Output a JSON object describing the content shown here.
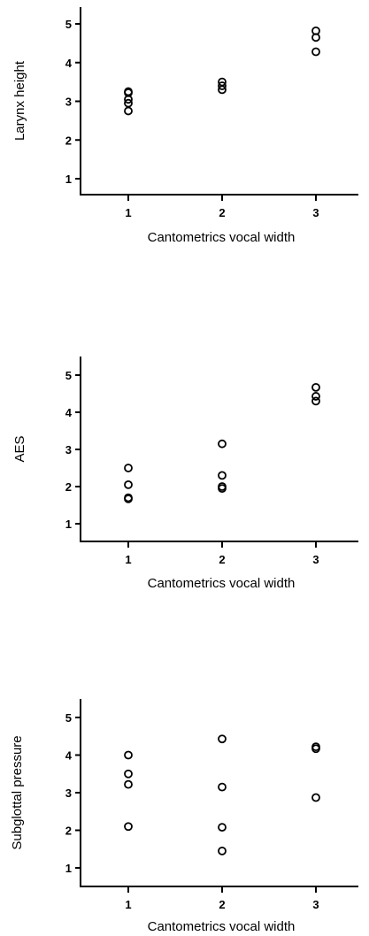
{
  "chart_data": [
    {
      "type": "scatter",
      "xlabel": "Cantometrics vocal width",
      "ylabel": "Larynx height",
      "xticks": [
        1,
        2,
        3
      ],
      "yticks": [
        1,
        2,
        3,
        4,
        5
      ],
      "xlim": [
        0.25,
        3.45
      ],
      "ylim": [
        0.55,
        5.5
      ],
      "grid": false,
      "points": [
        {
          "x": 1,
          "y": 3.25
        },
        {
          "x": 1,
          "y": 3.22
        },
        {
          "x": 1,
          "y": 3.05
        },
        {
          "x": 1,
          "y": 2.95
        },
        {
          "x": 1,
          "y": 2.75
        },
        {
          "x": 2,
          "y": 3.5
        },
        {
          "x": 2,
          "y": 3.4
        },
        {
          "x": 2,
          "y": 3.3
        },
        {
          "x": 3,
          "y": 4.82
        },
        {
          "x": 3,
          "y": 4.65
        },
        {
          "x": 3,
          "y": 4.28
        }
      ]
    },
    {
      "type": "scatter",
      "xlabel": "Cantometrics vocal width",
      "ylabel": "AES",
      "xticks": [
        1,
        2,
        3
      ],
      "yticks": [
        1,
        2,
        3,
        4,
        5
      ],
      "xlim": [
        0.25,
        3.45
      ],
      "ylim": [
        0.55,
        5.5
      ],
      "grid": false,
      "points": [
        {
          "x": 1,
          "y": 2.5
        },
        {
          "x": 1,
          "y": 2.05
        },
        {
          "x": 1,
          "y": 1.7
        },
        {
          "x": 1,
          "y": 1.67
        },
        {
          "x": 2,
          "y": 3.15
        },
        {
          "x": 2,
          "y": 2.3
        },
        {
          "x": 2,
          "y": 2.0
        },
        {
          "x": 2,
          "y": 1.95
        },
        {
          "x": 3,
          "y": 4.67
        },
        {
          "x": 3,
          "y": 4.43
        },
        {
          "x": 3,
          "y": 4.3
        }
      ]
    },
    {
      "type": "scatter",
      "xlabel": "Cantometrics vocal width",
      "ylabel": "Subglottal pressure",
      "xticks": [
        1,
        2,
        3
      ],
      "yticks": [
        1,
        2,
        3,
        4,
        5
      ],
      "xlim": [
        0.25,
        3.45
      ],
      "ylim": [
        0.55,
        5.5
      ],
      "grid": false,
      "points": [
        {
          "x": 1,
          "y": 4.0
        },
        {
          "x": 1,
          "y": 3.5
        },
        {
          "x": 1,
          "y": 3.22
        },
        {
          "x": 1,
          "y": 2.1
        },
        {
          "x": 2,
          "y": 4.43
        },
        {
          "x": 2,
          "y": 3.15
        },
        {
          "x": 2,
          "y": 2.08
        },
        {
          "x": 2,
          "y": 1.45
        },
        {
          "x": 3,
          "y": 4.22
        },
        {
          "x": 3,
          "y": 4.17
        },
        {
          "x": 3,
          "y": 2.87
        }
      ]
    }
  ]
}
